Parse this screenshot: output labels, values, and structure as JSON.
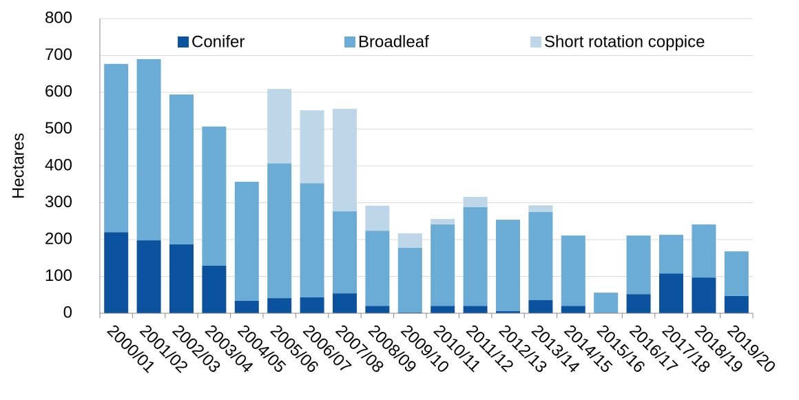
{
  "chart_data": {
    "type": "stacked-bar",
    "y_label": "Hectares",
    "categories": [
      "2000/01",
      "2001/02",
      "2002/03",
      "2003/04",
      "2004/05",
      "2005/06",
      "2006/07",
      "2007/08",
      "2008/09",
      "2009/10",
      "2010/11",
      "2011/12",
      "2012/13",
      "2013/14",
      "2014/15",
      "2015/16",
      "2016/17",
      "2017/18",
      "2018/19",
      "2019/20"
    ],
    "series": [
      {
        "name": "Conifer",
        "color": "#0b539f",
        "values": [
          220,
          198,
          187,
          129,
          34,
          41,
          43,
          54,
          20,
          2,
          20,
          20,
          6,
          36,
          20,
          1,
          52,
          108,
          97,
          47
        ]
      },
      {
        "name": "Broadleaf",
        "color": "#6aacd5",
        "values": [
          457,
          492,
          407,
          378,
          323,
          366,
          310,
          223,
          204,
          176,
          221,
          268,
          248,
          239,
          191,
          55,
          159,
          105,
          144,
          121
        ]
      },
      {
        "name": "Short rotation coppice",
        "color": "#bdd6e8",
        "values": [
          0,
          0,
          0,
          0,
          0,
          202,
          198,
          278,
          68,
          39,
          15,
          28,
          0,
          18,
          0,
          0,
          0,
          0,
          0,
          0
        ]
      }
    ],
    "ylim": [
      0,
      800
    ],
    "yticks": [
      0,
      100,
      200,
      300,
      400,
      500,
      600,
      700,
      800
    ],
    "grid": true,
    "legend_position": "top"
  }
}
